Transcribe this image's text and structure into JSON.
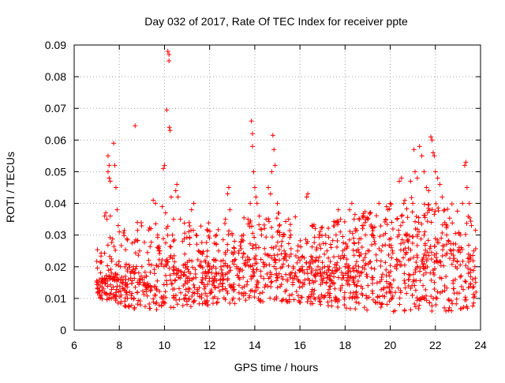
{
  "chart_data": {
    "type": "scatter",
    "title": "Day 032 of 2017, Rate Of TEC Index for receiver ppte",
    "xlabel": "GPS time / hours",
    "ylabel": "ROTI / TECUs",
    "xlim": [
      6,
      24
    ],
    "ylim": [
      0,
      0.09
    ],
    "x_ticks": [
      6,
      8,
      10,
      12,
      14,
      16,
      18,
      20,
      22,
      24
    ],
    "x_tick_labels": [
      "6",
      "8",
      "10",
      "12",
      "14",
      "16",
      "18",
      "20",
      "22",
      "24"
    ],
    "y_ticks": [
      0,
      0.01,
      0.02,
      0.03,
      0.04,
      0.05,
      0.06,
      0.07,
      0.08,
      0.09
    ],
    "y_tick_labels": [
      "0",
      "0.01",
      "0.02",
      "0.03",
      "0.04",
      "0.05",
      "0.06",
      "0.07",
      "0.08",
      "0.09"
    ],
    "grid": true,
    "marker": "+",
    "color": "#ff0000",
    "series": [
      {
        "points": [
          [
            7.05,
            0.013
          ],
          [
            7.1,
            0.012
          ],
          [
            7.15,
            0.014
          ],
          [
            7.2,
            0.011
          ],
          [
            7.25,
            0.015
          ],
          [
            7.3,
            0.013
          ],
          [
            7.35,
            0.036
          ],
          [
            7.4,
            0.037
          ],
          [
            7.45,
            0.035
          ],
          [
            7.5,
            0.05
          ],
          [
            7.5,
            0.055
          ],
          [
            7.55,
            0.048
          ],
          [
            7.55,
            0.052
          ],
          [
            7.6,
            0.047
          ],
          [
            7.6,
            0.036
          ],
          [
            7.65,
            0.018
          ],
          [
            7.7,
            0.016
          ],
          [
            7.75,
            0.059
          ],
          [
            7.8,
            0.052
          ],
          [
            7.85,
            0.045
          ],
          [
            7.9,
            0.038
          ],
          [
            7.95,
            0.033
          ],
          [
            8.0,
            0.031
          ],
          [
            8.05,
            0.02
          ],
          [
            8.1,
            0.015
          ],
          [
            8.2,
            0.013
          ],
          [
            8.3,
            0.012
          ],
          [
            8.4,
            0.016
          ],
          [
            8.5,
            0.018
          ],
          [
            8.6,
            0.019
          ],
          [
            8.7,
            0.0645
          ],
          [
            8.8,
            0.034
          ],
          [
            8.9,
            0.025
          ],
          [
            9.0,
            0.02
          ],
          [
            9.1,
            0.015
          ],
          [
            9.2,
            0.017
          ],
          [
            9.3,
            0.022
          ],
          [
            9.4,
            0.032
          ],
          [
            9.5,
            0.041
          ],
          [
            9.6,
            0.04
          ],
          [
            9.7,
            0.03
          ],
          [
            9.8,
            0.025
          ],
          [
            9.9,
            0.039
          ],
          [
            9.95,
            0.051
          ],
          [
            10.0,
            0.052
          ],
          [
            10.05,
            0.037
          ],
          [
            10.1,
            0.0695
          ],
          [
            10.15,
            0.088
          ],
          [
            10.2,
            0.087
          ],
          [
            10.2,
            0.085
          ],
          [
            10.22,
            0.064
          ],
          [
            10.25,
            0.063
          ],
          [
            10.3,
            0.042
          ],
          [
            10.35,
            0.03
          ],
          [
            10.4,
            0.035
          ],
          [
            10.5,
            0.044
          ],
          [
            10.55,
            0.046
          ],
          [
            10.6,
            0.042
          ],
          [
            10.7,
            0.035
          ],
          [
            10.8,
            0.028
          ],
          [
            10.9,
            0.024
          ],
          [
            11.0,
            0.02
          ],
          [
            11.1,
            0.022
          ],
          [
            11.2,
            0.038
          ],
          [
            11.3,
            0.04
          ],
          [
            11.4,
            0.03
          ],
          [
            11.5,
            0.025
          ],
          [
            11.6,
            0.02
          ],
          [
            11.7,
            0.018
          ],
          [
            11.8,
            0.022
          ],
          [
            11.9,
            0.025
          ],
          [
            12.0,
            0.02
          ],
          [
            12.1,
            0.018
          ],
          [
            12.2,
            0.022
          ],
          [
            12.3,
            0.03
          ],
          [
            12.4,
            0.025
          ],
          [
            12.5,
            0.02
          ],
          [
            12.6,
            0.022
          ],
          [
            12.7,
            0.035
          ],
          [
            12.8,
            0.043
          ],
          [
            12.85,
            0.045
          ],
          [
            12.9,
            0.038
          ],
          [
            13.0,
            0.03
          ],
          [
            13.1,
            0.022
          ],
          [
            13.2,
            0.02
          ],
          [
            13.3,
            0.025
          ],
          [
            13.4,
            0.028
          ],
          [
            13.5,
            0.03
          ],
          [
            13.6,
            0.022
          ],
          [
            13.7,
            0.035
          ],
          [
            13.8,
            0.04
          ],
          [
            13.85,
            0.066
          ],
          [
            13.9,
            0.062
          ],
          [
            13.9,
            0.058
          ],
          [
            13.95,
            0.05
          ],
          [
            14.0,
            0.045
          ],
          [
            14.05,
            0.042
          ],
          [
            14.1,
            0.04
          ],
          [
            14.2,
            0.036
          ],
          [
            14.3,
            0.03
          ],
          [
            14.4,
            0.02
          ],
          [
            14.5,
            0.035
          ],
          [
            14.6,
            0.045
          ],
          [
            14.7,
            0.043
          ],
          [
            14.75,
            0.05
          ],
          [
            14.8,
            0.0615
          ],
          [
            14.85,
            0.057
          ],
          [
            14.9,
            0.052
          ],
          [
            15.0,
            0.04
          ],
          [
            15.1,
            0.03
          ],
          [
            15.2,
            0.028
          ],
          [
            15.3,
            0.025
          ],
          [
            15.4,
            0.022
          ],
          [
            15.5,
            0.035
          ],
          [
            15.6,
            0.03
          ],
          [
            15.7,
            0.02
          ],
          [
            15.8,
            0.018
          ],
          [
            15.9,
            0.025
          ],
          [
            16.0,
            0.022
          ],
          [
            16.1,
            0.02
          ],
          [
            16.2,
            0.018
          ],
          [
            16.3,
            0.042
          ],
          [
            16.35,
            0.043
          ],
          [
            16.4,
            0.02
          ],
          [
            16.5,
            0.018
          ],
          [
            16.6,
            0.015
          ],
          [
            16.7,
            0.017
          ],
          [
            16.8,
            0.02
          ],
          [
            16.9,
            0.018
          ],
          [
            17.0,
            0.015
          ],
          [
            17.1,
            0.02
          ],
          [
            17.2,
            0.025
          ],
          [
            17.3,
            0.02
          ],
          [
            17.4,
            0.018
          ],
          [
            17.5,
            0.015
          ],
          [
            17.6,
            0.03
          ],
          [
            17.7,
            0.038
          ],
          [
            17.8,
            0.035
          ],
          [
            17.9,
            0.025
          ],
          [
            18.0,
            0.02
          ],
          [
            18.1,
            0.018
          ],
          [
            18.2,
            0.038
          ],
          [
            18.3,
            0.04
          ],
          [
            18.4,
            0.035
          ],
          [
            18.5,
            0.025
          ],
          [
            18.6,
            0.02
          ],
          [
            18.7,
            0.018
          ],
          [
            18.8,
            0.022
          ],
          [
            18.9,
            0.03
          ],
          [
            19.0,
            0.035
          ],
          [
            19.1,
            0.037
          ],
          [
            19.2,
            0.03
          ],
          [
            19.3,
            0.028
          ],
          [
            19.4,
            0.022
          ],
          [
            19.5,
            0.04
          ],
          [
            19.6,
            0.025
          ],
          [
            19.7,
            0.03
          ],
          [
            19.8,
            0.035
          ],
          [
            19.9,
            0.038
          ],
          [
            20.0,
            0.04
          ],
          [
            20.1,
            0.025
          ],
          [
            20.2,
            0.02
          ],
          [
            20.3,
            0.035
          ],
          [
            20.4,
            0.047
          ],
          [
            20.5,
            0.048
          ],
          [
            20.6,
            0.04
          ],
          [
            20.7,
            0.03
          ],
          [
            20.8,
            0.028
          ],
          [
            20.9,
            0.047
          ],
          [
            21.0,
            0.04
          ],
          [
            21.05,
            0.057
          ],
          [
            21.1,
            0.05
          ],
          [
            21.2,
            0.048
          ],
          [
            21.3,
            0.058
          ],
          [
            21.4,
            0.055
          ],
          [
            21.5,
            0.05
          ],
          [
            21.6,
            0.045
          ],
          [
            21.7,
            0.044
          ],
          [
            21.8,
            0.061
          ],
          [
            21.85,
            0.06
          ],
          [
            21.9,
            0.056
          ],
          [
            21.95,
            0.055
          ],
          [
            22.0,
            0.05
          ],
          [
            22.1,
            0.048
          ],
          [
            22.2,
            0.046
          ],
          [
            22.3,
            0.042
          ],
          [
            22.4,
            0.038
          ],
          [
            22.5,
            0.03
          ],
          [
            22.6,
            0.028
          ],
          [
            22.7,
            0.025
          ],
          [
            22.8,
            0.022
          ],
          [
            22.9,
            0.02
          ],
          [
            23.0,
            0.025
          ],
          [
            23.1,
            0.03
          ],
          [
            23.2,
            0.04
          ],
          [
            23.3,
            0.052
          ],
          [
            23.35,
            0.053
          ],
          [
            23.4,
            0.045
          ],
          [
            23.5,
            0.04
          ],
          [
            23.6,
            0.033
          ],
          [
            23.7,
            0.025
          ],
          [
            23.75,
            0.02
          ],
          [
            23.8,
            0.012
          ]
        ],
        "band": {
          "description_points": "dense cluster of markers spanning 7–24 h",
          "low": [
            [
              7,
              0.01
            ],
            [
              9,
              0.006
            ],
            [
              12,
              0.008
            ],
            [
              15,
              0.009
            ],
            [
              17,
              0.008
            ],
            [
              19,
              0.005
            ],
            [
              21,
              0.006
            ],
            [
              23,
              0.006
            ],
            [
              24,
              0.008
            ]
          ],
          "high": [
            [
              7,
              0.016
            ],
            [
              9,
              0.022
            ],
            [
              12,
              0.022
            ],
            [
              15,
              0.025
            ],
            [
              17,
              0.022
            ],
            [
              19,
              0.026
            ],
            [
              21,
              0.03
            ],
            [
              23,
              0.028
            ],
            [
              24,
              0.02
            ]
          ]
        }
      }
    ]
  }
}
